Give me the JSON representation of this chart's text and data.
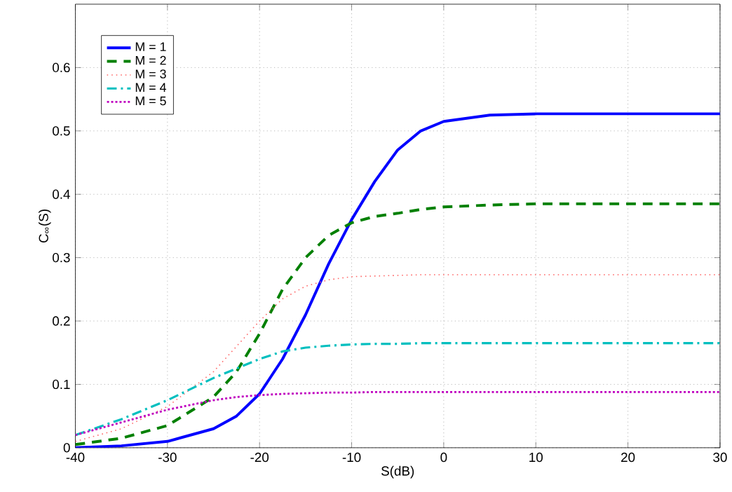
{
  "chart_data": {
    "type": "line",
    "xlabel": "S(dB)",
    "ylabel": "C$_{∞}$(S)",
    "xlim": [
      -40,
      30
    ],
    "ylim": [
      0,
      0.7
    ],
    "xticks": [
      -40,
      -30,
      -20,
      -10,
      0,
      10,
      20,
      30
    ],
    "yticks": [
      0,
      0.1,
      0.2,
      0.3,
      0.4,
      0.5,
      0.6
    ],
    "grid": true,
    "legend": "top left",
    "x": [
      -40,
      -35,
      -30,
      -25,
      -22.5,
      -20,
      -17.5,
      -15,
      -12.5,
      -10,
      -7.5,
      -5,
      -2.5,
      0,
      5,
      10,
      20,
      30
    ],
    "series": [
      {
        "name": "M = 1",
        "color": "#0000ff",
        "line_style": "solid",
        "values": [
          0.0,
          0.003,
          0.01,
          0.03,
          0.05,
          0.085,
          0.14,
          0.21,
          0.29,
          0.36,
          0.42,
          0.47,
          0.5,
          0.515,
          0.525,
          0.527,
          0.527,
          0.527
        ]
      },
      {
        "name": "M = 2",
        "color": "#008000",
        "line_style": "dashed",
        "values": [
          0.005,
          0.015,
          0.035,
          0.08,
          0.12,
          0.18,
          0.25,
          0.3,
          0.335,
          0.355,
          0.365,
          0.37,
          0.376,
          0.38,
          0.383,
          0.385,
          0.385,
          0.385
        ]
      },
      {
        "name": "M = 3",
        "color": "#ff6666",
        "line_style": "dotted",
        "values": [
          0.01,
          0.03,
          0.065,
          0.12,
          0.16,
          0.2,
          0.235,
          0.255,
          0.265,
          0.27,
          0.271,
          0.272,
          0.273,
          0.273,
          0.273,
          0.273,
          0.273,
          0.273
        ]
      },
      {
        "name": "M = 4",
        "color": "#00bfbf",
        "line_style": "dashdot",
        "values": [
          0.02,
          0.045,
          0.075,
          0.11,
          0.125,
          0.14,
          0.152,
          0.158,
          0.161,
          0.163,
          0.164,
          0.164,
          0.165,
          0.165,
          0.165,
          0.165,
          0.165,
          0.165
        ]
      },
      {
        "name": "M = 5",
        "color": "#bf00bf",
        "line_style": "densely dotted",
        "values": [
          0.02,
          0.04,
          0.06,
          0.075,
          0.08,
          0.083,
          0.085,
          0.086,
          0.087,
          0.087,
          0.088,
          0.088,
          0.088,
          0.088,
          0.088,
          0.088,
          0.088,
          0.088
        ]
      }
    ]
  }
}
